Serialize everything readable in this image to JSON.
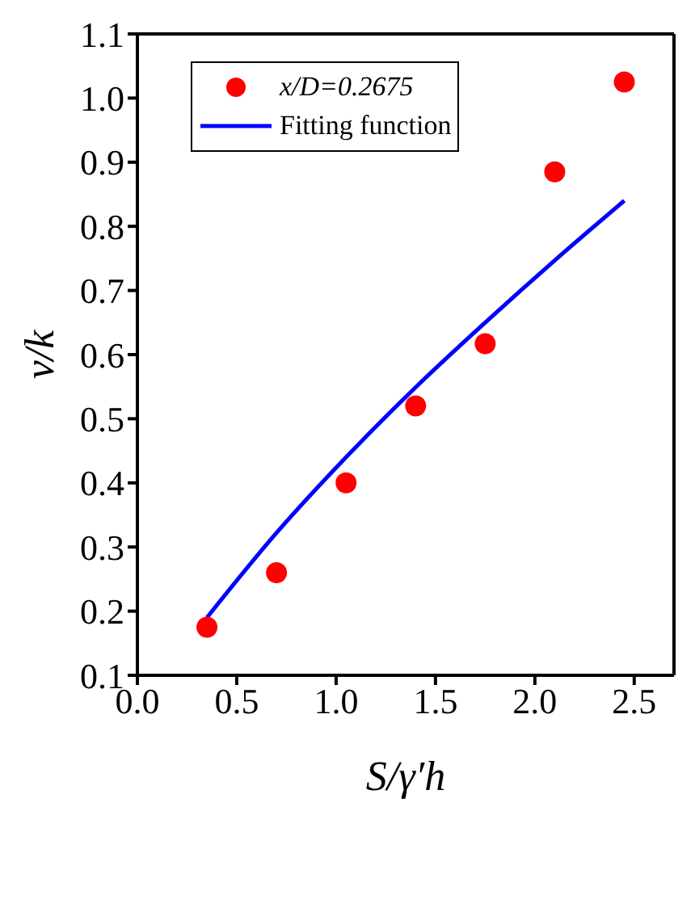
{
  "chart_data": {
    "type": "scatter",
    "xlabel": "S/γ′h",
    "ylabel": "v/k",
    "xlim": [
      0,
      2.7
    ],
    "xticks": [
      {
        "value": 0,
        "label": "0.0"
      },
      0.5,
      {
        "value": 1,
        "label": "1.0"
      },
      1.5,
      {
        "value": 2,
        "label": "2.0"
      },
      2.5
    ],
    "ylim": [
      0.1,
      1.1
    ],
    "yticks": [
      0.1,
      0.2,
      0.3,
      0.4,
      0.5,
      0.6,
      0.7,
      0.8,
      0.9,
      {
        "value": 1,
        "label": "1.0"
      },
      1.1
    ],
    "x": [
      0.35,
      0.7,
      1.05,
      1.4,
      1.75,
      2.1,
      2.45
    ],
    "series": [
      {
        "name": "x/D=0.2675",
        "color": "#ff0000",
        "marker": "circle",
        "values": [
          0.175,
          0.26,
          0.4,
          0.52,
          0.617,
          0.885,
          1.025
        ]
      },
      {
        "name": "Fitting function",
        "type": "line",
        "color": "#0000ff",
        "marker": "none",
        "line_style": "solid",
        "values": [
          0.19,
          0.322,
          0.44,
          0.549,
          0.65,
          0.747,
          0.84
        ]
      }
    ],
    "grid": false,
    "legend": "top left"
  }
}
